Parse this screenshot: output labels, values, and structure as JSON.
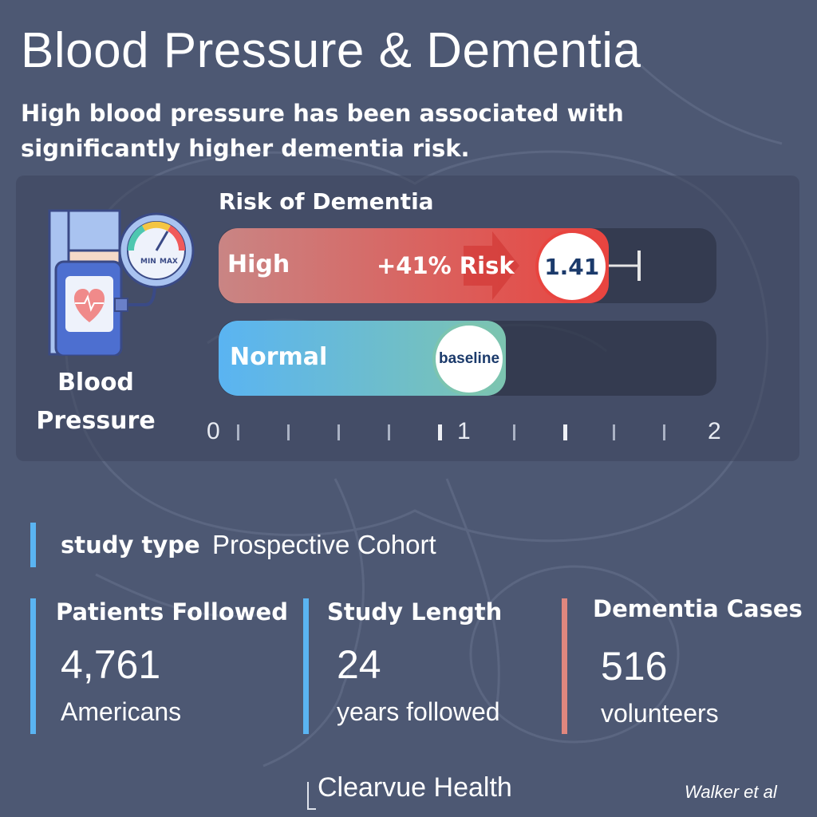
{
  "header": {
    "title": "Blood Pressure & Dementia",
    "subtitle": "High blood pressure has been associated with significantly higher dementia risk."
  },
  "illustration": {
    "icon": "blood-pressure-monitor-icon",
    "gauge_min": "MIN",
    "gauge_max": "MAX",
    "label_line1": "Blood",
    "label_line2": "Pressure"
  },
  "chart_data": {
    "type": "bar",
    "title": "Risk of Dementia",
    "categories": [
      "High",
      "Normal"
    ],
    "values": [
      1.41,
      1.0
    ],
    "value_labels": [
      "1.41",
      "baseline"
    ],
    "annotation": "+41% Risk",
    "error_bar_upper": 1.72,
    "xlim": [
      0,
      2
    ],
    "x_tick_labels": [
      "0",
      "1",
      "2"
    ],
    "minor_ticks": 0.1,
    "orientation": "horizontal",
    "grid": false
  },
  "study": {
    "type_label": "study type",
    "type_value": "Prospective Cohort",
    "stats": [
      {
        "label": "Patients Followed",
        "value": "4,761",
        "unit": "Americans"
      },
      {
        "label": "Study Length",
        "value": "24",
        "unit": "years followed"
      },
      {
        "label": "Dementia Cases",
        "value": "516",
        "unit": "volunteers"
      }
    ]
  },
  "footer": {
    "brand": "Clearvue Health",
    "credit": "Walker et al"
  },
  "colors": {
    "background": "#4d5873",
    "high_bar_start": "#c98584",
    "high_bar_end": "#e8443f",
    "normal_bar_start": "#5ab4f2",
    "normal_bar_end": "#7cc4b0",
    "accent_blue": "#5ab4f2",
    "accent_red": "#e0877e",
    "label_blue": "#1b3a6b"
  }
}
